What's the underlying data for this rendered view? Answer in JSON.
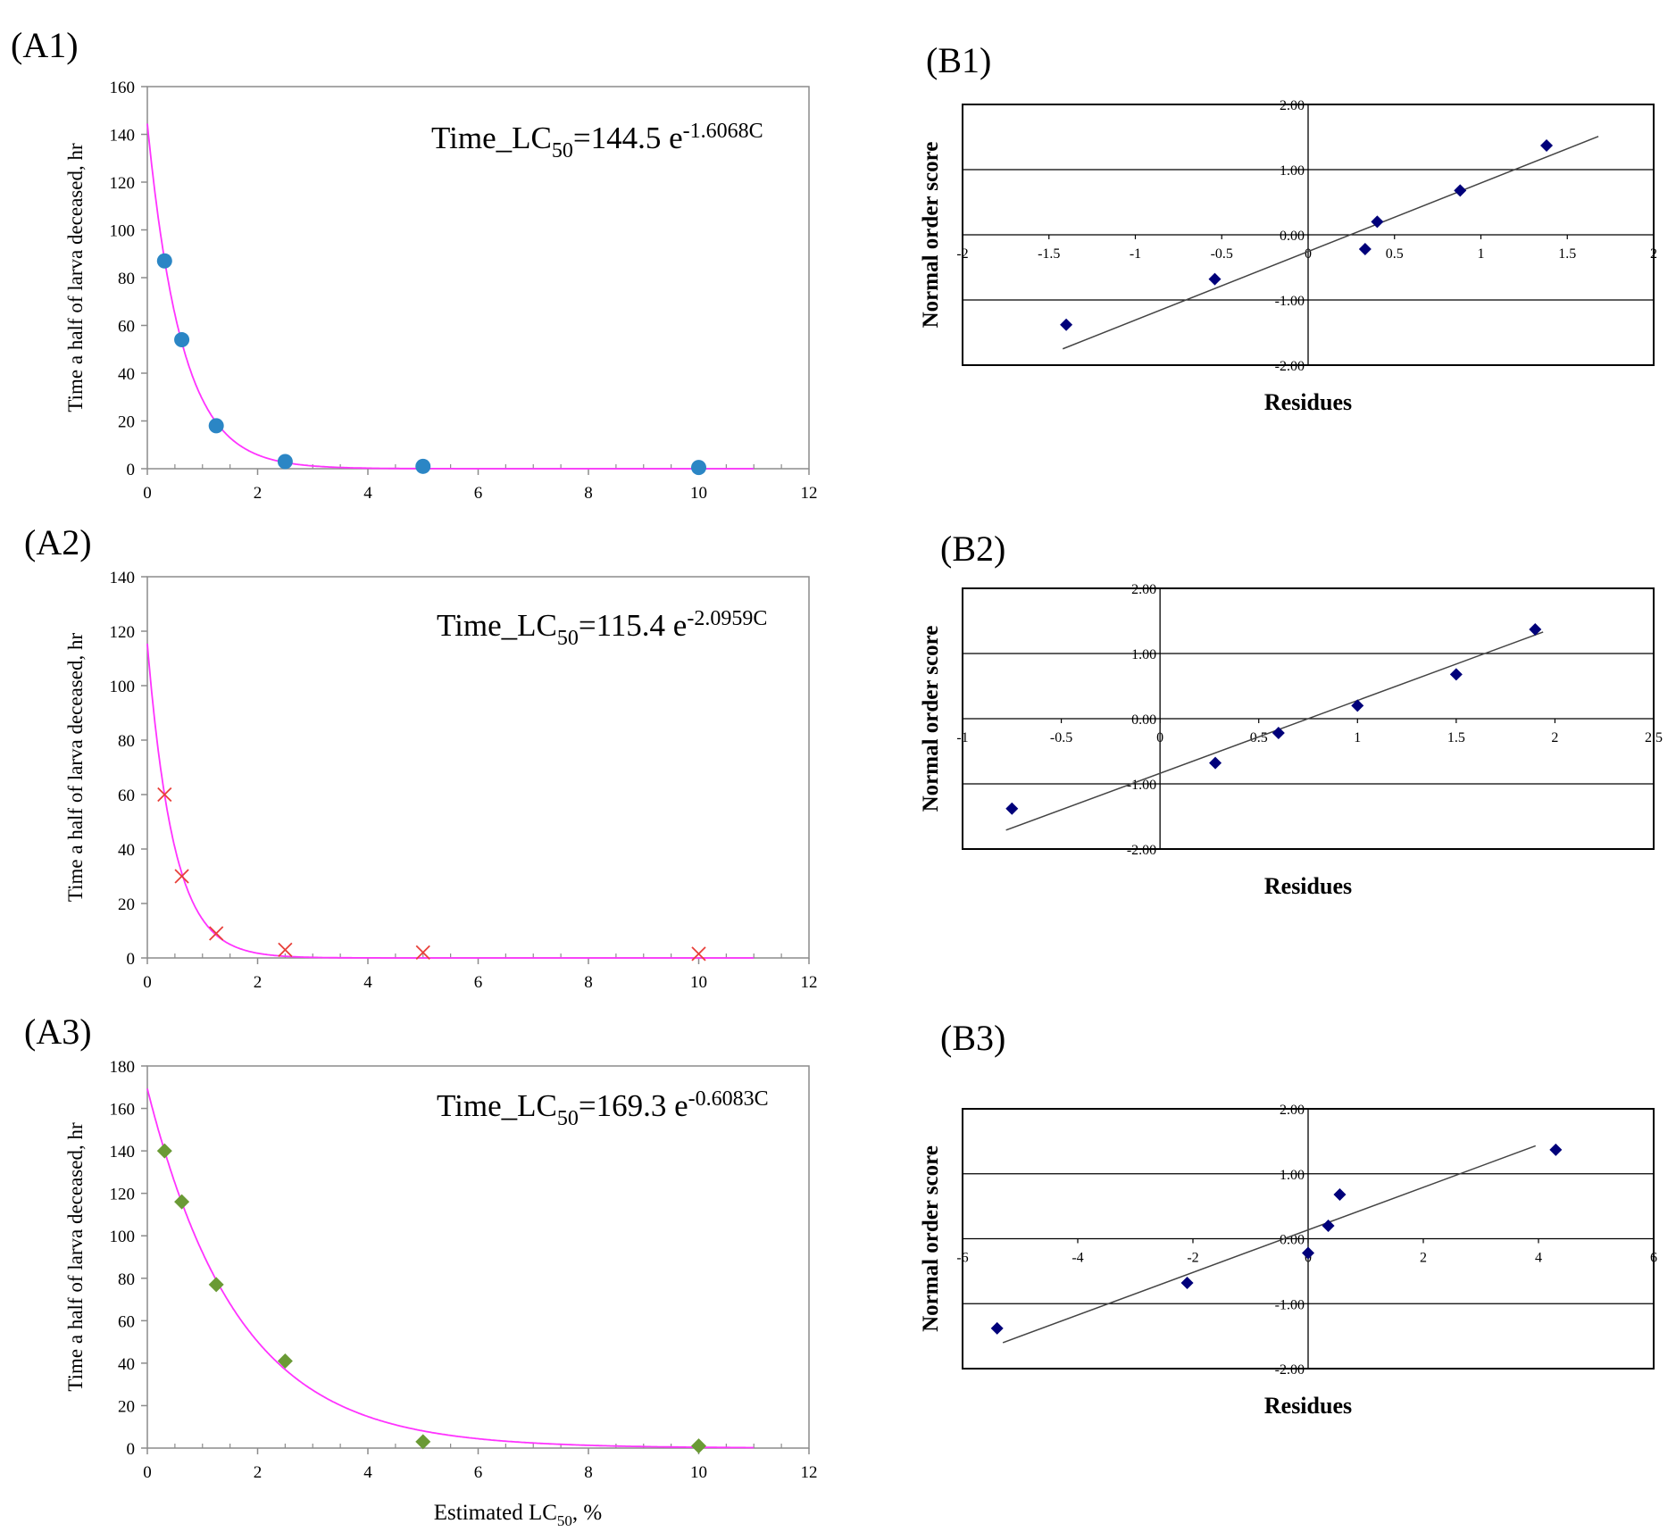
{
  "panels_a": [
    {
      "label": "(A1)",
      "ylabel": "Time a half of larva deceased, hr",
      "xlabel": "",
      "equation": {
        "prefix": "Time_LC",
        "sub": "50",
        "coef": "=144.5 e",
        "exp": "-1.6068C"
      },
      "marker": "circle",
      "marker_color": "#2b86c5",
      "curve_color": "#ff33ff",
      "xlim": [
        0,
        12
      ],
      "ylim": [
        0,
        160
      ],
      "xticks": [
        "0",
        "2",
        "4",
        "6",
        "8",
        "10",
        "12"
      ],
      "yticks": [
        "0",
        "20",
        "40",
        "60",
        "80",
        "100",
        "120",
        "140",
        "160"
      ]
    },
    {
      "label": "(A2)",
      "ylabel": "Time a half of larva deceased, hr",
      "xlabel": "",
      "equation": {
        "prefix": "Time_LC",
        "sub": "50",
        "coef": "=115.4 e",
        "exp": "-2.0959C"
      },
      "marker": "x",
      "marker_color": "#e8403a",
      "curve_color": "#ff33ff",
      "xlim": [
        0,
        12
      ],
      "ylim": [
        0,
        140
      ],
      "xticks": [
        "0",
        "2",
        "4",
        "6",
        "8",
        "10",
        "12"
      ],
      "yticks": [
        "0",
        "20",
        "40",
        "60",
        "80",
        "100",
        "120",
        "140"
      ]
    },
    {
      "label": "(A3)",
      "ylabel": "Time a half of larva deceased, hr",
      "xlabel_main": "Estimated LC",
      "xlabel_sub": "50",
      "xlabel_tail": ", %",
      "equation": {
        "prefix": "Time_LC",
        "sub": "50",
        "coef": "=169.3 e",
        "exp": "-0.6083C"
      },
      "marker": "diamond",
      "marker_color": "#6a9a35",
      "curve_color": "#ff33ff",
      "xlim": [
        0,
        12
      ],
      "ylim": [
        0,
        180
      ],
      "xticks": [
        "0",
        "2",
        "4",
        "6",
        "8",
        "10",
        "12"
      ],
      "yticks": [
        "0",
        "20",
        "40",
        "60",
        "80",
        "100",
        "120",
        "140",
        "160",
        "180"
      ]
    }
  ],
  "panels_b": [
    {
      "label": "(B1)",
      "ylabel": "Normal order score",
      "xlabel": "Residues",
      "xticks": [
        "-2",
        "-1.5",
        "-1",
        "-0.5",
        "0",
        "0.5",
        "1",
        "1.5",
        "2"
      ],
      "yticks": [
        "2.00",
        "1.00",
        "0.00",
        "-1.00",
        "-2.00"
      ],
      "marker_color": "#00007a"
    },
    {
      "label": "(B2)",
      "ylabel": "Normal order score",
      "xlabel": "Residues",
      "xticks": [
        "-1",
        "-0.5",
        "0",
        "0.5",
        "1",
        "1.5",
        "2",
        "2.5"
      ],
      "yticks": [
        "2.00",
        "1.00",
        "0.00",
        "-1.00",
        "-2.00"
      ],
      "marker_color": "#00007a"
    },
    {
      "label": "(B3)",
      "ylabel": "Normal order score",
      "xlabel": "Residues",
      "xticks": [
        "-6",
        "-4",
        "-2",
        "0",
        "2",
        "4",
        "6"
      ],
      "yticks": [
        "2.00",
        "1.00",
        "0.00",
        "-1.00",
        "-2.00"
      ],
      "marker_color": "#00007a"
    }
  ],
  "chart_data": [
    {
      "panel": "A1",
      "type": "scatter",
      "x": [
        0.3125,
        0.625,
        1.25,
        2.5,
        5,
        10
      ],
      "y": [
        87,
        54,
        18,
        3,
        1,
        0.5
      ],
      "fit": {
        "model": "exponential",
        "a": 144.5,
        "b": -1.6068
      },
      "xlim": [
        0,
        12
      ],
      "ylim": [
        0,
        160
      ],
      "ylabel": "Time a half of larva deceased, hr",
      "annotation": "Time_LC50=144.5 e^-1.6068C"
    },
    {
      "panel": "A2",
      "type": "scatter",
      "x": [
        0.3125,
        0.625,
        1.25,
        2.5,
        5,
        10
      ],
      "y": [
        60,
        30,
        9,
        3,
        2,
        1.5
      ],
      "fit": {
        "model": "exponential",
        "a": 115.4,
        "b": -2.0959
      },
      "xlim": [
        0,
        12
      ],
      "ylim": [
        0,
        140
      ],
      "ylabel": "Time a half of larva deceased, hr",
      "annotation": "Time_LC50=115.4 e^-2.0959C"
    },
    {
      "panel": "A3",
      "type": "scatter",
      "x": [
        0.3125,
        0.625,
        1.25,
        2.5,
        5,
        10
      ],
      "y": [
        140,
        116,
        77,
        41,
        3,
        1
      ],
      "fit": {
        "model": "exponential",
        "a": 169.3,
        "b": -0.6083
      },
      "xlim": [
        0,
        12
      ],
      "ylim": [
        0,
        180
      ],
      "xlabel": "Estimated LC50, %",
      "ylabel": "Time a half of larva deceased, hr",
      "annotation": "Time_LC50=169.3 e^-0.6083C"
    },
    {
      "panel": "B1",
      "type": "scatter",
      "x": [
        -1.4,
        -0.54,
        0.33,
        0.4,
        0.88,
        1.38
      ],
      "y": [
        -1.38,
        -0.68,
        -0.22,
        0.2,
        0.68,
        1.37
      ],
      "fit_line": {
        "x": [
          -1.42,
          1.68
        ],
        "y": [
          -1.75,
          1.51
        ]
      },
      "xlim": [
        -2,
        2
      ],
      "ylim": [
        -2,
        2
      ],
      "xlabel": "Residues",
      "ylabel": "Normal order score"
    },
    {
      "panel": "B2",
      "type": "scatter",
      "x": [
        -0.75,
        0.28,
        0.6,
        1.0,
        1.5,
        1.9
      ],
      "y": [
        -1.38,
        -0.68,
        -0.22,
        0.2,
        0.68,
        1.37
      ],
      "fit_line": {
        "x": [
          -0.78,
          1.94
        ],
        "y": [
          -1.71,
          1.33
        ]
      },
      "xlim": [
        -1,
        2.5
      ],
      "ylim": [
        -2,
        2
      ],
      "xlabel": "Residues",
      "ylabel": "Normal order score"
    },
    {
      "panel": "B3",
      "type": "scatter",
      "x": [
        -5.4,
        -2.1,
        0.0,
        0.35,
        0.55,
        4.3
      ],
      "y": [
        -1.38,
        -0.68,
        -0.22,
        0.2,
        0.68,
        1.37
      ],
      "fit_line": {
        "x": [
          -5.3,
          3.95
        ],
        "y": [
          -1.6,
          1.43
        ]
      },
      "xlim": [
        -6,
        6
      ],
      "ylim": [
        -2,
        2
      ],
      "xlabel": "Residues",
      "ylabel": "Normal order score"
    }
  ]
}
